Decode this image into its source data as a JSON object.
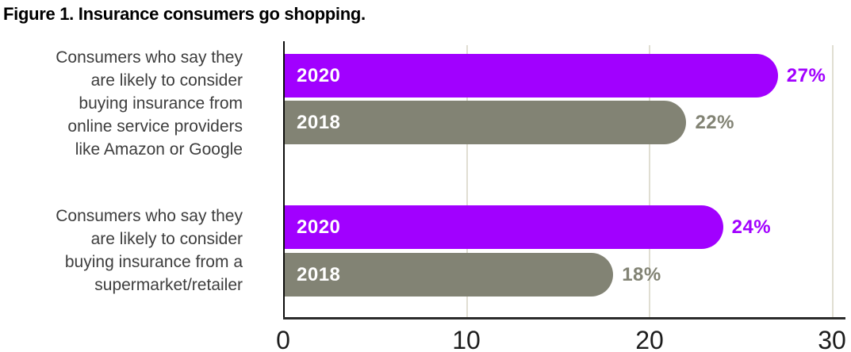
{
  "title": "Figure 1. Insurance consumers go shopping.",
  "colors": {
    "bar_2020": "#a100ff",
    "bar_2018": "#828374",
    "gridline": "#e0ded2",
    "axis_line": "#2b2b2b",
    "category_text": "#3d3d3d",
    "tick_text": "#1c1c1c",
    "bar_inner_text": "#ffffff"
  },
  "chart_data": {
    "type": "bar",
    "orientation": "horizontal",
    "title": "Figure 1. Insurance consumers go shopping.",
    "xlabel": "",
    "ylabel": "",
    "xlim": [
      0,
      30
    ],
    "x_ticks": [
      "0",
      "10",
      "20",
      "30"
    ],
    "grid": true,
    "legend_position": "none",
    "categories": [
      "Consumers who say they are likely to consider buying insurance from online service providers like Amazon or Google",
      "Consumers who say they are likely to consider buying insurance from a supermarket/retailer"
    ],
    "series": [
      {
        "name": "2020",
        "color": "#a100ff",
        "values": [
          27,
          24
        ]
      },
      {
        "name": "2018",
        "color": "#828374",
        "values": [
          22,
          18
        ]
      }
    ],
    "groups": [
      {
        "label_lines": [
          "Consumers who say they",
          "are likely to consider",
          "buying insurance from",
          "online service providers",
          "like Amazon or Google"
        ],
        "bars": [
          {
            "year": "2020",
            "value": 27,
            "value_label": "27%"
          },
          {
            "year": "2018",
            "value": 22,
            "value_label": "22%"
          }
        ]
      },
      {
        "label_lines": [
          "Consumers who say they",
          "are likely to consider",
          "buying insurance from a",
          "supermarket/retailer"
        ],
        "bars": [
          {
            "year": "2020",
            "value": 24,
            "value_label": "24%"
          },
          {
            "year": "2018",
            "value": 18,
            "value_label": "18%"
          }
        ]
      }
    ]
  }
}
